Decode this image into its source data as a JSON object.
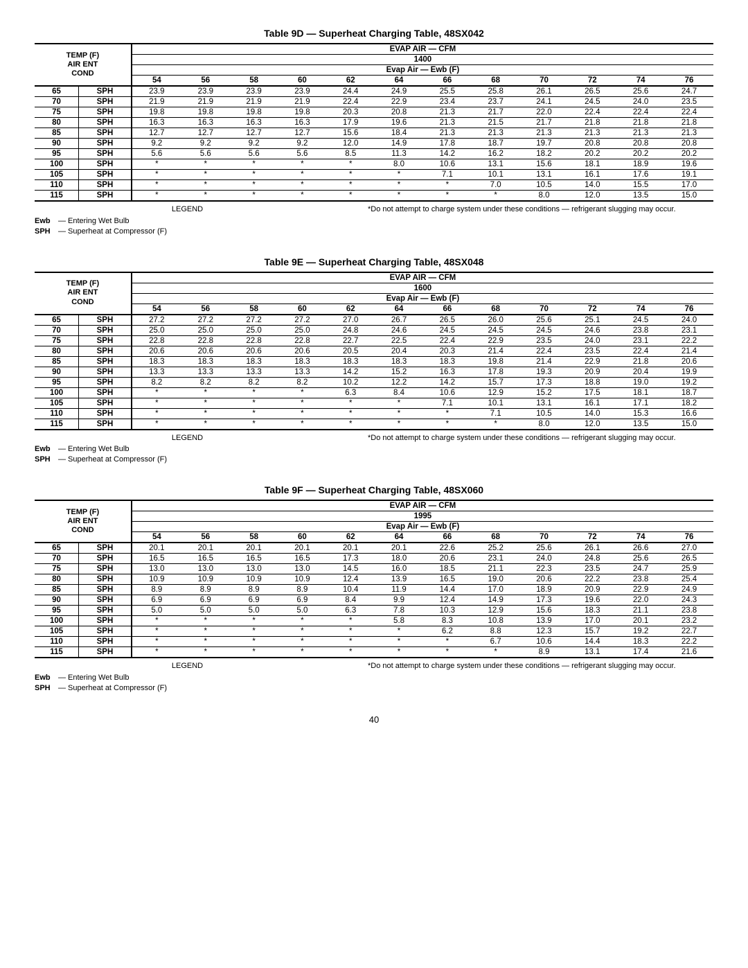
{
  "page_number": "40",
  "legend": {
    "header": "LEGEND",
    "items": [
      {
        "term": "Ewb",
        "desc": "Entering Wet Bulb"
      },
      {
        "term": "SPH",
        "desc": "Superheat at Compressor (F)"
      }
    ],
    "footnote": "*Do not attempt to charge system under these conditions — refrigerant slugging may occur."
  },
  "common": {
    "left_header_l1": "TEMP (F)",
    "left_header_l2": "AIR ENT",
    "left_header_l3": "COND",
    "evap_air_cfm": "EVAP AIR — CFM",
    "evap_air_ewb": "Evap Air — Ewb (F)",
    "ewb_cols": [
      "54",
      "56",
      "58",
      "60",
      "62",
      "64",
      "66",
      "68",
      "70",
      "72",
      "74",
      "76"
    ],
    "sph_label": "SPH",
    "temps": [
      "65",
      "70",
      "75",
      "80",
      "85",
      "90",
      "95",
      "100",
      "105",
      "110",
      "115"
    ]
  },
  "tables": [
    {
      "title": "Table 9D — Superheat Charging Table, 48SX042",
      "cfm": "1400",
      "rows": [
        [
          "23.9",
          "23.9",
          "23.9",
          "23.9",
          "24.4",
          "24.9",
          "25.5",
          "25.8",
          "26.1",
          "26.5",
          "25.6",
          "24.7"
        ],
        [
          "21.9",
          "21.9",
          "21.9",
          "21.9",
          "22.4",
          "22.9",
          "23.4",
          "23.7",
          "24.1",
          "24.5",
          "24.0",
          "23.5"
        ],
        [
          "19.8",
          "19.8",
          "19.8",
          "19.8",
          "20.3",
          "20.8",
          "21.3",
          "21.7",
          "22.0",
          "22.4",
          "22.4",
          "22.4"
        ],
        [
          "16.3",
          "16.3",
          "16.3",
          "16.3",
          "17.9",
          "19.6",
          "21.3",
          "21.5",
          "21.7",
          "21.8",
          "21.8",
          "21.8"
        ],
        [
          "12.7",
          "12.7",
          "12.7",
          "12.7",
          "15.6",
          "18.4",
          "21.3",
          "21.3",
          "21.3",
          "21.3",
          "21.3",
          "21.3"
        ],
        [
          "9.2",
          "9.2",
          "9.2",
          "9.2",
          "12.0",
          "14.9",
          "17.8",
          "18.7",
          "19.7",
          "20.8",
          "20.8",
          "20.8"
        ],
        [
          "5.6",
          "5.6",
          "5.6",
          "5.6",
          "8.5",
          "11.3",
          "14.2",
          "16.2",
          "18.2",
          "20.2",
          "20.2",
          "20.2"
        ],
        [
          "*",
          "*",
          "*",
          "*",
          "*",
          "8.0",
          "10.6",
          "13.1",
          "15.6",
          "18.1",
          "18.9",
          "19.6"
        ],
        [
          "*",
          "*",
          "*",
          "*",
          "*",
          "*",
          "7.1",
          "10.1",
          "13.1",
          "16.1",
          "17.6",
          "19.1"
        ],
        [
          "*",
          "*",
          "*",
          "*",
          "*",
          "*",
          "*",
          "7.0",
          "10.5",
          "14.0",
          "15.5",
          "17.0"
        ],
        [
          "*",
          "*",
          "*",
          "*",
          "*",
          "*",
          "*",
          "*",
          "8.0",
          "12.0",
          "13.5",
          "15.0"
        ]
      ]
    },
    {
      "title": "Table 9E — Superheat Charging Table, 48SX048",
      "cfm": "1600",
      "rows": [
        [
          "27.2",
          "27.2",
          "27.2",
          "27.2",
          "27.0",
          "26.7",
          "26.5",
          "26.0",
          "25.6",
          "25.1",
          "24.5",
          "24.0"
        ],
        [
          "25.0",
          "25.0",
          "25.0",
          "25.0",
          "24.8",
          "24.6",
          "24.5",
          "24.5",
          "24.5",
          "24.6",
          "23.8",
          "23.1"
        ],
        [
          "22.8",
          "22.8",
          "22.8",
          "22.8",
          "22.7",
          "22.5",
          "22.4",
          "22.9",
          "23.5",
          "24.0",
          "23.1",
          "22.2"
        ],
        [
          "20.6",
          "20.6",
          "20.6",
          "20.6",
          "20.5",
          "20.4",
          "20.3",
          "21.4",
          "22.4",
          "23.5",
          "22.4",
          "21.4"
        ],
        [
          "18.3",
          "18.3",
          "18.3",
          "18.3",
          "18.3",
          "18.3",
          "18.3",
          "19.8",
          "21.4",
          "22.9",
          "21.8",
          "20.6"
        ],
        [
          "13.3",
          "13.3",
          "13.3",
          "13.3",
          "14.2",
          "15.2",
          "16.3",
          "17.8",
          "19.3",
          "20.9",
          "20.4",
          "19.9"
        ],
        [
          "8.2",
          "8.2",
          "8.2",
          "8.2",
          "10.2",
          "12.2",
          "14.2",
          "15.7",
          "17.3",
          "18.8",
          "19.0",
          "19.2"
        ],
        [
          "*",
          "*",
          "*",
          "*",
          "6.3",
          "8.4",
          "10.6",
          "12.9",
          "15.2",
          "17.5",
          "18.1",
          "18.7"
        ],
        [
          "*",
          "*",
          "*",
          "*",
          "*",
          "*",
          "7.1",
          "10.1",
          "13.1",
          "16.1",
          "17.1",
          "18.2"
        ],
        [
          "*",
          "*",
          "*",
          "*",
          "*",
          "*",
          "*",
          "7.1",
          "10.5",
          "14.0",
          "15.3",
          "16.6"
        ],
        [
          "*",
          "*",
          "*",
          "*",
          "*",
          "*",
          "*",
          "*",
          "8.0",
          "12.0",
          "13.5",
          "15.0"
        ]
      ]
    },
    {
      "title": "Table 9F — Superheat Charging Table, 48SX060",
      "cfm": "1995",
      "rows": [
        [
          "20.1",
          "20.1",
          "20.1",
          "20.1",
          "20.1",
          "20.1",
          "22.6",
          "25.2",
          "25.6",
          "26.1",
          "26.6",
          "27.0"
        ],
        [
          "16.5",
          "16.5",
          "16.5",
          "16.5",
          "17.3",
          "18.0",
          "20.6",
          "23.1",
          "24.0",
          "24.8",
          "25.6",
          "26.5"
        ],
        [
          "13.0",
          "13.0",
          "13.0",
          "13.0",
          "14.5",
          "16.0",
          "18.5",
          "21.1",
          "22.3",
          "23.5",
          "24.7",
          "25.9"
        ],
        [
          "10.9",
          "10.9",
          "10.9",
          "10.9",
          "12.4",
          "13.9",
          "16.5",
          "19.0",
          "20.6",
          "22.2",
          "23.8",
          "25.4"
        ],
        [
          "8.9",
          "8.9",
          "8.9",
          "8.9",
          "10.4",
          "11.9",
          "14.4",
          "17.0",
          "18.9",
          "20.9",
          "22.9",
          "24.9"
        ],
        [
          "6.9",
          "6.9",
          "6.9",
          "6.9",
          "8.4",
          "9.9",
          "12.4",
          "14.9",
          "17.3",
          "19.6",
          "22.0",
          "24.3"
        ],
        [
          "5.0",
          "5.0",
          "5.0",
          "5.0",
          "6.3",
          "7.8",
          "10.3",
          "12.9",
          "15.6",
          "18.3",
          "21.1",
          "23.8"
        ],
        [
          "*",
          "*",
          "*",
          "*",
          "*",
          "5.8",
          "8.3",
          "10.8",
          "13.9",
          "17.0",
          "20.1",
          "23.2"
        ],
        [
          "*",
          "*",
          "*",
          "*",
          "*",
          "*",
          "6.2",
          "8.8",
          "12.3",
          "15.7",
          "19.2",
          "22.7"
        ],
        [
          "*",
          "*",
          "*",
          "*",
          "*",
          "*",
          "*",
          "6.7",
          "10.6",
          "14.4",
          "18.3",
          "22.2"
        ],
        [
          "*",
          "*",
          "*",
          "*",
          "*",
          "*",
          "*",
          "*",
          "8.9",
          "13.1",
          "17.4",
          "21.6"
        ]
      ]
    }
  ]
}
